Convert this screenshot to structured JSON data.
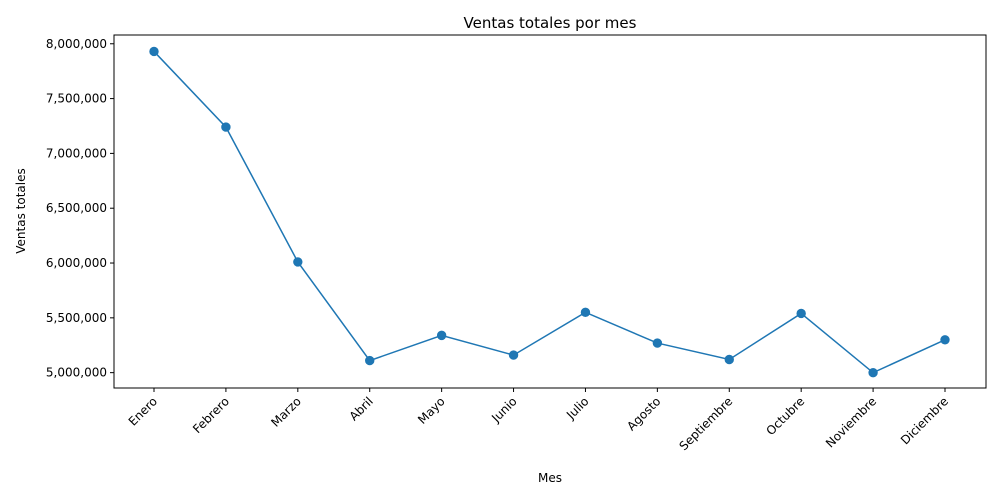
{
  "chart_data": {
    "type": "line",
    "title": "Ventas totales por mes",
    "xlabel": "Mes",
    "ylabel": "Ventas totales",
    "categories": [
      "Enero",
      "Febrero",
      "Marzo",
      "Abril",
      "Mayo",
      "Junio",
      "Julio",
      "Agosto",
      "Septiembre",
      "Octubre",
      "Noviembre",
      "Diciembre"
    ],
    "values": [
      7930000,
      7240000,
      6010000,
      5110000,
      5340000,
      5160000,
      5550000,
      5270000,
      5120000,
      5540000,
      5000000,
      5300000
    ],
    "y_ticks": [
      5000000,
      5500000,
      6000000,
      6500000,
      7000000,
      7500000,
      8000000
    ],
    "y_tick_labels": [
      "5,000,000",
      "5,500,000",
      "6,000,000",
      "6,500,000",
      "7,000,000",
      "7,500,000",
      "8,000,000"
    ],
    "ylim": [
      4860000,
      8080000
    ],
    "grid": false,
    "color": "#1f77b4"
  }
}
